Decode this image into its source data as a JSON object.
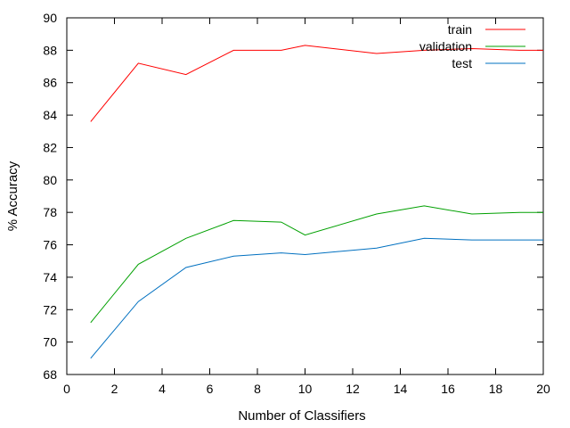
{
  "chart_data": {
    "type": "line",
    "xlabel": "Number of Classifiers",
    "ylabel": "% Accuracy",
    "xlim": [
      0,
      20
    ],
    "ylim": [
      68,
      90
    ],
    "xticks": [
      0,
      2,
      4,
      6,
      8,
      10,
      12,
      14,
      16,
      18,
      20
    ],
    "yticks": [
      68,
      70,
      72,
      74,
      76,
      78,
      80,
      82,
      84,
      86,
      88,
      90
    ],
    "grid": false,
    "legend_position": "top-right",
    "series": [
      {
        "name": "train",
        "color": "#ff0000",
        "x": [
          1,
          3,
          5,
          7,
          9,
          10,
          13,
          15,
          17,
          19,
          20
        ],
        "y": [
          83.6,
          87.2,
          86.5,
          88.0,
          88.0,
          88.3,
          87.8,
          88.0,
          88.1,
          88.0,
          88.0
        ]
      },
      {
        "name": "validation",
        "color": "#00a000",
        "x": [
          1,
          3,
          5,
          7,
          9,
          10,
          13,
          15,
          17,
          19,
          20
        ],
        "y": [
          71.2,
          74.8,
          76.4,
          77.5,
          77.4,
          76.6,
          77.9,
          78.4,
          77.9,
          78.0,
          78.0
        ]
      },
      {
        "name": "test",
        "color": "#0070c0",
        "x": [
          1,
          3,
          5,
          7,
          9,
          10,
          13,
          15,
          17,
          19,
          20
        ],
        "y": [
          69.0,
          72.5,
          74.6,
          75.3,
          75.5,
          75.4,
          75.8,
          76.4,
          76.3,
          76.3,
          76.3
        ]
      }
    ]
  }
}
